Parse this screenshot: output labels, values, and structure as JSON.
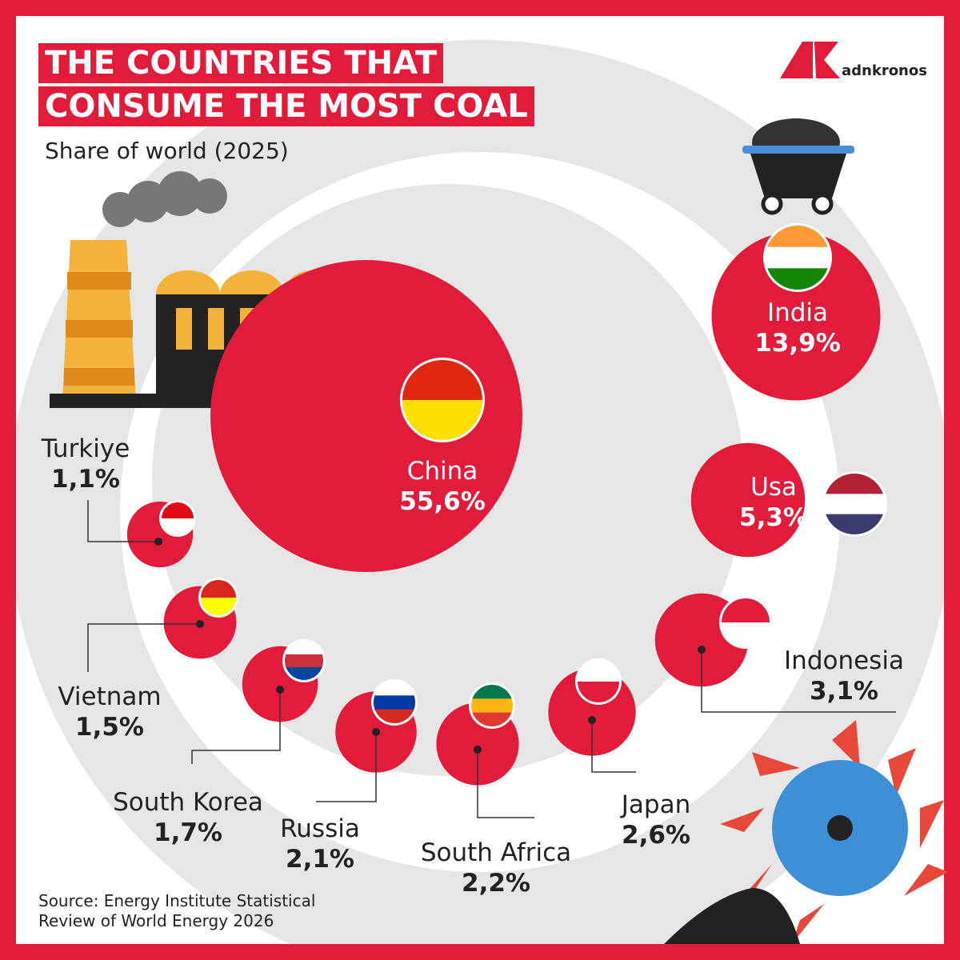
{
  "chart_data": {
    "type": "bubble",
    "title": "THE COUNTRIES THAT CONSUME THE MOST COAL",
    "subtitle": "Share of world (2025)",
    "brand": "adnkronos",
    "source": "Source: Energy Institute Statistical Review of World Energy 2026",
    "color": "#e31b3b",
    "categories": [
      "China",
      "India",
      "Usa",
      "Indonesia",
      "Japan",
      "South Africa",
      "Russia",
      "South Korea",
      "Vietnam",
      "Turkiye"
    ],
    "values": [
      55.6,
      13.9,
      5.3,
      3.1,
      2.6,
      2.2,
      2.1,
      1.7,
      1.5,
      1.1
    ],
    "value_labels": [
      "55,6%",
      "13,9%",
      "5,3%",
      "3,1%",
      "2,6%",
      "2,2%",
      "2,1%",
      "1,7%",
      "1,5%",
      "1,1%"
    ]
  }
}
